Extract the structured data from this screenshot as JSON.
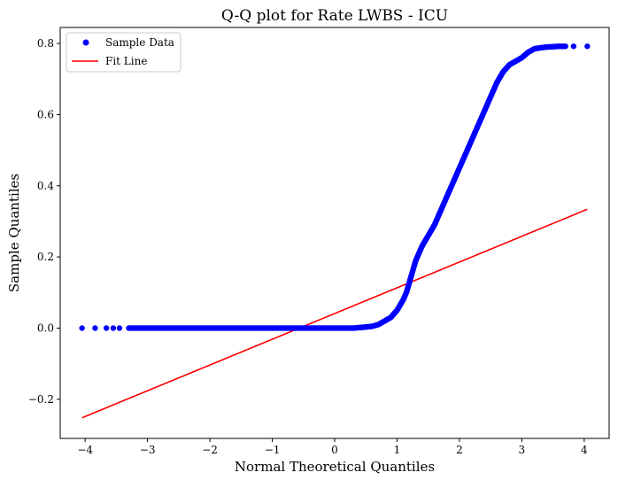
{
  "chart_data": {
    "type": "scatter",
    "title": "Q-Q plot for Rate LWBS - ICU",
    "xlabel": "Normal Theoretical Quantiles",
    "ylabel": "Sample Quantiles",
    "xlim": [
      -4.4,
      4.4
    ],
    "ylim": [
      -0.31,
      0.845
    ],
    "xticks": [
      -4,
      -3,
      -2,
      -1,
      0,
      1,
      2,
      3,
      4
    ],
    "xtick_labels": [
      "−4",
      "−3",
      "−2",
      "−1",
      "0",
      "1",
      "2",
      "3",
      "4"
    ],
    "yticks": [
      -0.2,
      0.0,
      0.2,
      0.4,
      0.6,
      0.8
    ],
    "ytick_labels": [
      "−0.2",
      "0.0",
      "0.2",
      "0.4",
      "0.6",
      "0.8"
    ],
    "grid": false,
    "legend_position": "top-left",
    "series": [
      {
        "name": "Sample Data",
        "kind": "scatter",
        "color": "#0000ff",
        "points": [
          [
            -4.05,
            0.0
          ],
          [
            -3.84,
            0.0
          ],
          [
            -3.66,
            0.0
          ],
          [
            -3.55,
            0.0
          ],
          [
            -3.45,
            0.0
          ],
          [
            -3.3,
            0.0
          ],
          [
            -3.0,
            0.0
          ],
          [
            -2.5,
            0.0
          ],
          [
            -2.0,
            0.0
          ],
          [
            -1.5,
            0.0
          ],
          [
            -1.0,
            0.0
          ],
          [
            -0.5,
            0.0
          ],
          [
            0.0,
            0.0
          ],
          [
            0.3,
            0.0
          ],
          [
            0.5,
            0.003
          ],
          [
            0.6,
            0.005
          ],
          [
            0.7,
            0.01
          ],
          [
            0.8,
            0.02
          ],
          [
            0.9,
            0.03
          ],
          [
            1.0,
            0.05
          ],
          [
            1.1,
            0.08
          ],
          [
            1.15,
            0.1
          ],
          [
            1.2,
            0.13
          ],
          [
            1.25,
            0.16
          ],
          [
            1.3,
            0.19
          ],
          [
            1.35,
            0.21
          ],
          [
            1.4,
            0.23
          ],
          [
            1.5,
            0.26
          ],
          [
            1.6,
            0.29
          ],
          [
            1.7,
            0.33
          ],
          [
            1.8,
            0.37
          ],
          [
            1.9,
            0.41
          ],
          [
            2.0,
            0.45
          ],
          [
            2.1,
            0.49
          ],
          [
            2.2,
            0.53
          ],
          [
            2.3,
            0.57
          ],
          [
            2.4,
            0.61
          ],
          [
            2.5,
            0.65
          ],
          [
            2.6,
            0.69
          ],
          [
            2.7,
            0.72
          ],
          [
            2.8,
            0.74
          ],
          [
            2.9,
            0.75
          ],
          [
            3.0,
            0.76
          ],
          [
            3.1,
            0.775
          ],
          [
            3.2,
            0.785
          ],
          [
            3.3,
            0.788
          ],
          [
            3.4,
            0.79
          ],
          [
            3.5,
            0.791
          ],
          [
            3.6,
            0.792
          ],
          [
            3.7,
            0.792
          ],
          [
            3.83,
            0.792
          ],
          [
            4.05,
            0.792
          ]
        ]
      },
      {
        "name": "Fit Line",
        "kind": "line",
        "color": "#ff0000",
        "points": [
          [
            -4.05,
            -0.252
          ],
          [
            4.05,
            0.334
          ]
        ]
      }
    ]
  }
}
